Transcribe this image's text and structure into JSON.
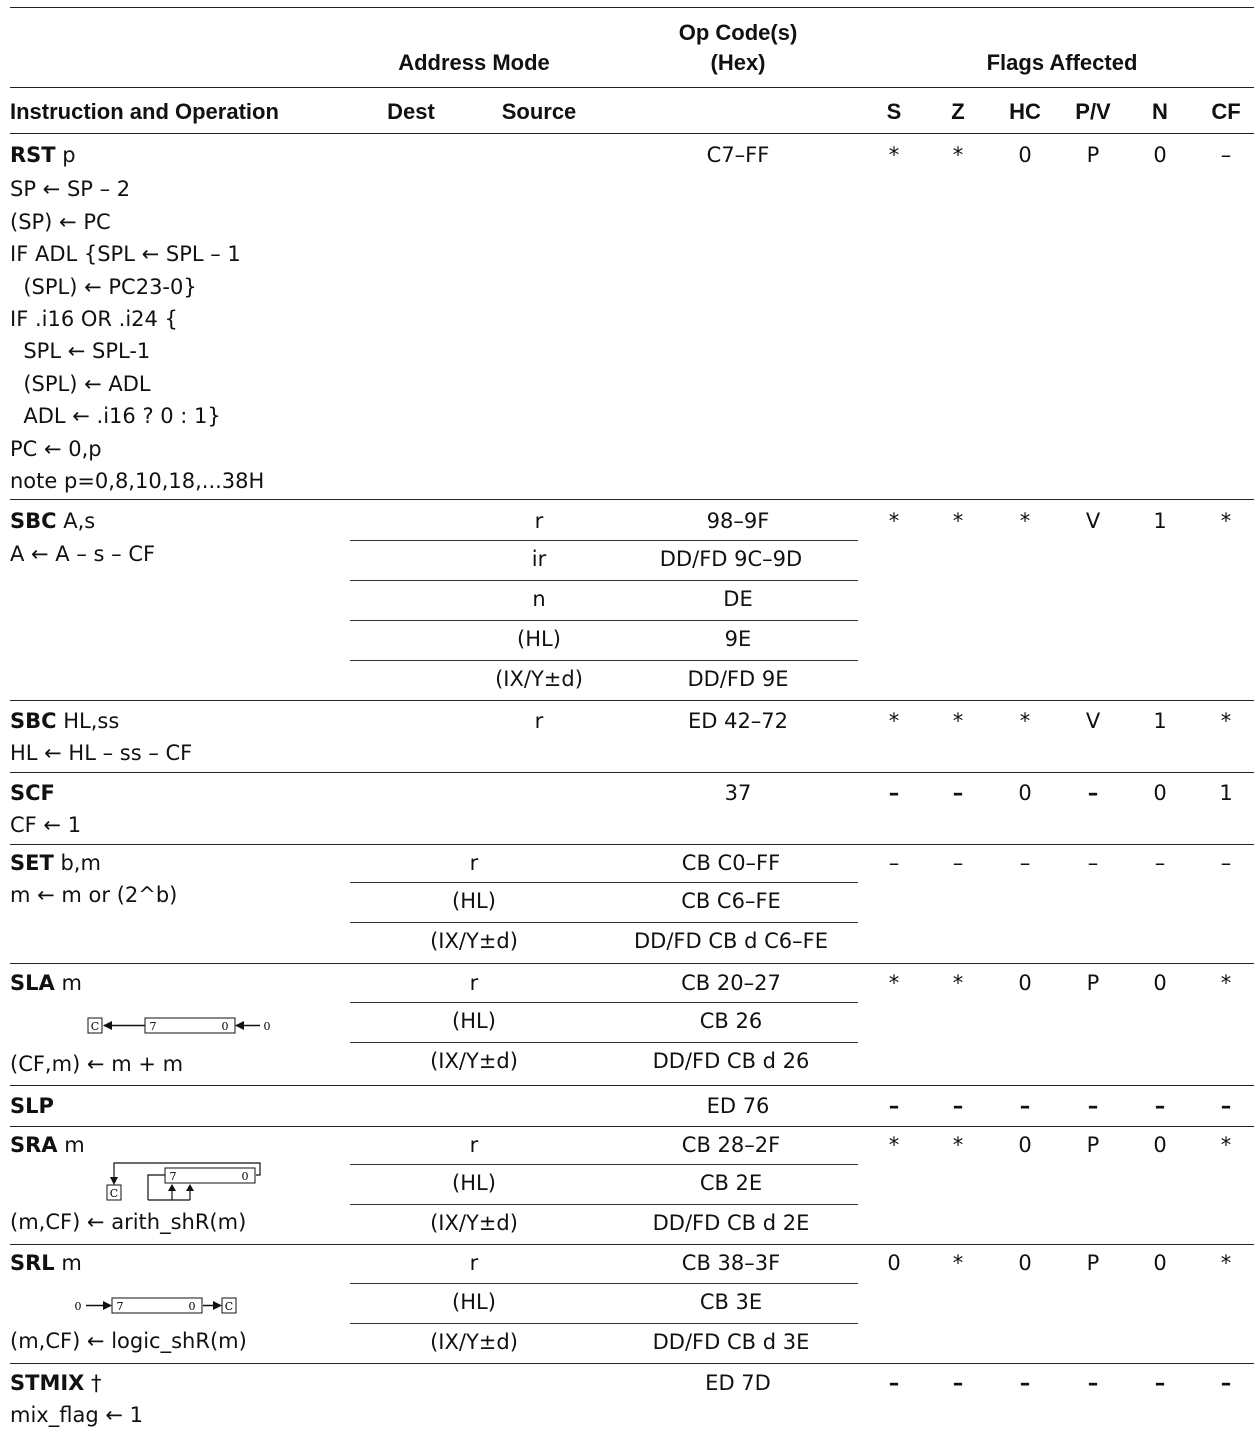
{
  "header": {
    "address_mode": "Address Mode",
    "op_codes": "Op Code(s)",
    "hex": "(Hex)",
    "flags_affected": "Flags Affected",
    "instruction_and_operation": "Instruction and Operation",
    "dest": "Dest",
    "source": "Source",
    "flag_s": "S",
    "flag_z": "Z",
    "flag_hc": "HC",
    "flag_pv": "P/V",
    "flag_n": "N",
    "flag_cf": "CF"
  },
  "rst": {
    "mnemonic": "RST",
    "operand": " p",
    "lines": [
      "SP ← SP – 2",
      "(SP) ← PC",
      "IF ADL {SPL ← SPL – 1",
      "  (SPL) ← PC23-0}",
      "IF .i16 OR .i24 {",
      "  SPL ← SPL-1",
      "  (SPL) ← ADL",
      "  ADL ← .i16 ? 0 : 1}",
      "PC ← 0,p",
      "note p=0,8,10,18,...38H"
    ],
    "opcode": "C7–FF",
    "flags": [
      "*",
      "*",
      "0",
      "P",
      "0",
      "–"
    ]
  },
  "sbc_a": {
    "mnemonic": "SBC",
    "operand": " A,s",
    "line": "A ← A – s – CF",
    "modes": [
      {
        "source": "r",
        "opcode": "98–9F"
      },
      {
        "source": "ir",
        "opcode": "DD/FD 9C–9D"
      },
      {
        "source": "n",
        "opcode": "DE"
      },
      {
        "source": "(HL)",
        "opcode": "9E"
      },
      {
        "source": "(IX/Y±d)",
        "opcode": "DD/FD 9E"
      }
    ],
    "flags": [
      "*",
      "*",
      "*",
      "V",
      "1",
      "*"
    ]
  },
  "sbc_hl": {
    "mnemonic": "SBC",
    "operand": " HL,ss",
    "line": "HL ← HL – ss – CF",
    "source": "r",
    "opcode": "ED 42–72",
    "flags": [
      "*",
      "*",
      "*",
      "V",
      "1",
      "*"
    ]
  },
  "scf": {
    "mnemonic": "SCF",
    "line": "CF ← 1",
    "opcode": "37",
    "flags": [
      "–",
      "–",
      "0",
      "–",
      "0",
      "1"
    ]
  },
  "set": {
    "mnemonic": "SET",
    "operand": " b,m",
    "line": "m ← m or (2^b)",
    "modes": [
      {
        "dest": "r",
        "opcode": "CB C0–FF"
      },
      {
        "dest": "(HL)",
        "opcode": "CB C6–FE"
      },
      {
        "dest": "(IX/Y±d)",
        "opcode": "DD/FD CB d C6–FE"
      }
    ],
    "flags": [
      "–",
      "–",
      "–",
      "–",
      "–",
      "–"
    ]
  },
  "sla": {
    "mnemonic": "SLA",
    "operand": " m",
    "line": "(CF,m) ← m + m",
    "modes": [
      {
        "dest": "r",
        "opcode": "CB 20–27"
      },
      {
        "dest": "(HL)",
        "opcode": "CB 26"
      },
      {
        "dest": "(IX/Y±d)",
        "opcode": "DD/FD CB d 26"
      }
    ],
    "flags": [
      "*",
      "*",
      "0",
      "P",
      "0",
      "*"
    ],
    "diagram": {
      "c": "C",
      "hi": "7",
      "lo": "0",
      "in": "0"
    }
  },
  "slp": {
    "mnemonic": "SLP",
    "opcode": "ED 76",
    "flags": [
      "–",
      "–",
      "–",
      "–",
      "–",
      "–"
    ]
  },
  "sra": {
    "mnemonic": "SRA",
    "operand": " m",
    "line": "(m,CF) ← arith_shR(m)",
    "modes": [
      {
        "dest": "r",
        "opcode": "CB 28–2F"
      },
      {
        "dest": "(HL)",
        "opcode": "CB 2E"
      },
      {
        "dest": "(IX/Y±d)",
        "opcode": "DD/FD CB d 2E"
      }
    ],
    "flags": [
      "*",
      "*",
      "0",
      "P",
      "0",
      "*"
    ],
    "diagram": {
      "c": "C",
      "hi": "7",
      "lo": "0"
    }
  },
  "srl": {
    "mnemonic": "SRL",
    "operand": " m",
    "line": "(m,CF) ← logic_shR(m)",
    "modes": [
      {
        "dest": "r",
        "opcode": "CB 38–3F"
      },
      {
        "dest": "(HL)",
        "opcode": "CB 3E"
      },
      {
        "dest": "(IX/Y±d)",
        "opcode": "DD/FD CB d 3E"
      }
    ],
    "flags": [
      "0",
      "*",
      "0",
      "P",
      "0",
      "*"
    ],
    "diagram": {
      "c": "C",
      "hi": "7",
      "lo": "0",
      "in": "0"
    }
  },
  "stmix": {
    "mnemonic": "STMIX",
    "operand": " †",
    "line": "mix_flag ← 1",
    "opcode": "ED 7D",
    "flags": [
      "–",
      "–",
      "–",
      "–",
      "–",
      "–"
    ]
  }
}
